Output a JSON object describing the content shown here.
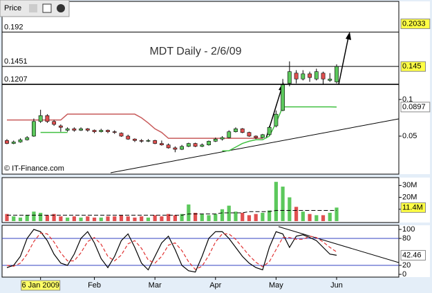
{
  "header": {
    "title": "Price"
  },
  "chart_data": [
    {
      "type": "candlestick",
      "title": "MDT Daily - 2/6/09",
      "watermark": "© IT-Finance.com",
      "categories": [
        null,
        null,
        null,
        null,
        null,
        "6 Jan 2009",
        null,
        null,
        null,
        null,
        null,
        null,
        null,
        "Feb",
        null,
        null,
        null,
        null,
        null,
        null,
        null,
        null,
        "Mar",
        null,
        null,
        null,
        null,
        null,
        null,
        null,
        null,
        "Apr",
        null,
        null,
        null,
        null,
        null,
        null,
        null,
        null,
        "May",
        null,
        null,
        null,
        null,
        null,
        null,
        null,
        null,
        "Jun"
      ],
      "open": [
        0.044,
        0.04,
        0.042,
        0.045,
        0.05,
        0.07,
        0.078,
        0.07,
        0.064,
        0.058,
        0.06,
        0.058,
        0.06,
        0.058,
        0.056,
        0.058,
        0.056,
        0.054,
        0.05,
        0.046,
        0.044,
        0.043,
        0.044,
        0.04,
        0.038,
        0.034,
        0.032,
        0.036,
        0.04,
        0.036,
        0.038,
        0.043,
        0.046,
        0.048,
        0.056,
        0.06,
        0.055,
        0.05,
        0.048,
        0.052,
        0.064,
        0.085,
        0.122,
        0.136,
        0.128,
        0.135,
        0.128,
        0.136,
        0.126,
        0.124
      ],
      "high": [
        0.046,
        0.044,
        0.047,
        0.05,
        0.074,
        0.086,
        0.08,
        0.072,
        0.066,
        0.062,
        0.062,
        0.062,
        0.061,
        0.059,
        0.06,
        0.059,
        0.058,
        0.055,
        0.052,
        0.047,
        0.046,
        0.046,
        0.045,
        0.044,
        0.04,
        0.036,
        0.038,
        0.041,
        0.041,
        0.04,
        0.044,
        0.048,
        0.05,
        0.058,
        0.062,
        0.061,
        0.056,
        0.051,
        0.053,
        0.064,
        0.085,
        0.128,
        0.152,
        0.14,
        0.14,
        0.138,
        0.142,
        0.138,
        0.136,
        0.148
      ],
      "low": [
        0.039,
        0.039,
        0.041,
        0.044,
        0.049,
        0.068,
        0.068,
        0.064,
        0.056,
        0.056,
        0.056,
        0.057,
        0.056,
        0.054,
        0.055,
        0.054,
        0.053,
        0.049,
        0.045,
        0.042,
        0.041,
        0.042,
        0.039,
        0.037,
        0.033,
        0.028,
        0.031,
        0.035,
        0.035,
        0.035,
        0.037,
        0.042,
        0.044,
        0.047,
        0.055,
        0.054,
        0.049,
        0.046,
        0.047,
        0.051,
        0.062,
        0.084,
        0.118,
        0.122,
        0.126,
        0.124,
        0.126,
        0.12,
        0.124,
        0.122
      ],
      "close": [
        0.04,
        0.042,
        0.045,
        0.048,
        0.07,
        0.078,
        0.07,
        0.066,
        0.062,
        0.06,
        0.058,
        0.06,
        0.058,
        0.056,
        0.058,
        0.056,
        0.055,
        0.05,
        0.046,
        0.044,
        0.043,
        0.044,
        0.04,
        0.038,
        0.034,
        0.032,
        0.036,
        0.04,
        0.036,
        0.038,
        0.043,
        0.046,
        0.048,
        0.056,
        0.06,
        0.055,
        0.05,
        0.048,
        0.052,
        0.062,
        0.08,
        0.12,
        0.138,
        0.128,
        0.135,
        0.13,
        0.138,
        0.128,
        0.128,
        0.145
      ],
      "up_color": "#5cc85c",
      "down_color": "#e05050",
      "overlays": [
        {
          "color": "#c85a5a",
          "values": [
            0.072,
            0.072,
            0.072,
            0.072,
            0.072,
            0.072,
            0.072,
            0.072,
            0.072,
            0.08,
            0.08,
            0.08,
            0.08,
            0.08,
            0.08,
            0.08,
            0.08,
            0.08,
            0.08,
            0.08,
            0.075,
            0.068,
            0.06,
            0.055,
            0.047,
            0.047,
            0.047,
            0.047,
            0.047,
            0.047,
            0.047,
            0.047,
            0.047,
            0.047,
            0.047,
            0.047,
            0.047,
            0.047,
            0.047,
            null,
            null,
            null,
            null,
            null,
            null,
            null,
            null,
            null,
            null,
            null
          ]
        },
        {
          "color": "#40c040",
          "values": [
            null,
            null,
            null,
            null,
            null,
            0.055,
            0.055,
            0.055,
            0.055,
            0.055,
            null,
            null,
            null,
            null,
            null,
            null,
            null,
            null,
            null,
            null,
            null,
            null,
            null,
            null,
            null,
            null,
            null,
            null,
            null,
            null,
            null,
            null,
            0.03,
            0.03,
            0.035,
            0.04,
            0.043,
            0.045,
            0.045,
            0.05,
            0.068,
            0.09,
            0.09,
            0.09,
            0.09,
            0.09,
            0.09,
            0.09,
            0.09,
            0.0897
          ]
        }
      ],
      "levels": [
        0.192,
        0.1451,
        0.1207
      ],
      "target": 0.2033,
      "ylim": [
        0,
        0.232
      ],
      "yticks": [
        0.05,
        0.1
      ]
    },
    {
      "type": "bar",
      "values": [
        6,
        4,
        3,
        5,
        8,
        7,
        5,
        6,
        4,
        3,
        4,
        3,
        4,
        3,
        3,
        4,
        4,
        5,
        4,
        3,
        4,
        3,
        5,
        4,
        6,
        5,
        6,
        14,
        7,
        6,
        5,
        6,
        10,
        13,
        8,
        7,
        5,
        6,
        7,
        9,
        33,
        29,
        20,
        12,
        8,
        6,
        5,
        5,
        7,
        11.4
      ],
      "value_labels": [
        null,
        null,
        null,
        null,
        null,
        null,
        null,
        null,
        null,
        null,
        null,
        null,
        null,
        null,
        null,
        null,
        null,
        null,
        null,
        null,
        null,
        null,
        null,
        null,
        null,
        null,
        null,
        null,
        null,
        null,
        null,
        null,
        null,
        null,
        null,
        null,
        null,
        null,
        null,
        null,
        null,
        null,
        null,
        null,
        null,
        null,
        null,
        null,
        null,
        "11.4M"
      ],
      "average": [
        5,
        5,
        5,
        5,
        5,
        5,
        5,
        5,
        5,
        5,
        5,
        5,
        5,
        5,
        5,
        5,
        5,
        5,
        5,
        5,
        5,
        5,
        5,
        5,
        5,
        5,
        5,
        6,
        6,
        6,
        6,
        6,
        7,
        7,
        7,
        7,
        8,
        8,
        8,
        8,
        9,
        9,
        9,
        9,
        9,
        9,
        9,
        9,
        9,
        9
      ],
      "ylim": [
        0,
        36
      ],
      "yticks": [
        {
          "value": 10,
          "label": "10M"
        },
        {
          "value": 20,
          "label": "20M"
        },
        {
          "value": 30,
          "label": "30M"
        }
      ]
    },
    {
      "type": "line",
      "series": [
        {
          "color": "#000000",
          "values": [
            15,
            20,
            40,
            80,
            100,
            95,
            75,
            45,
            25,
            20,
            45,
            80,
            95,
            70,
            35,
            15,
            40,
            75,
            90,
            60,
            25,
            10,
            40,
            70,
            85,
            55,
            20,
            8,
            5,
            40,
            80,
            95,
            95,
            80,
            60,
            40,
            25,
            15,
            10,
            60,
            95,
            90,
            60,
            85,
            88,
            82,
            75,
            60,
            45,
            42.46
          ]
        },
        {
          "color": "#e03030",
          "dash": true,
          "values": [
            20,
            18,
            25,
            45,
            73,
            92,
            90,
            72,
            48,
            30,
            30,
            48,
            73,
            82,
            67,
            40,
            30,
            43,
            68,
            75,
            58,
            32,
            25,
            40,
            65,
            70,
            53,
            28,
            11,
            18,
            42,
            72,
            90,
            90,
            78,
            60,
            42,
            27,
            17,
            28,
            55,
            82,
            82,
            78,
            78,
            85,
            82,
            72,
            60,
            50
          ]
        }
      ],
      "hlines": [
        20,
        80
      ],
      "ylim": [
        -5,
        105
      ],
      "yticks": [
        0,
        20,
        80,
        100
      ]
    }
  ]
}
